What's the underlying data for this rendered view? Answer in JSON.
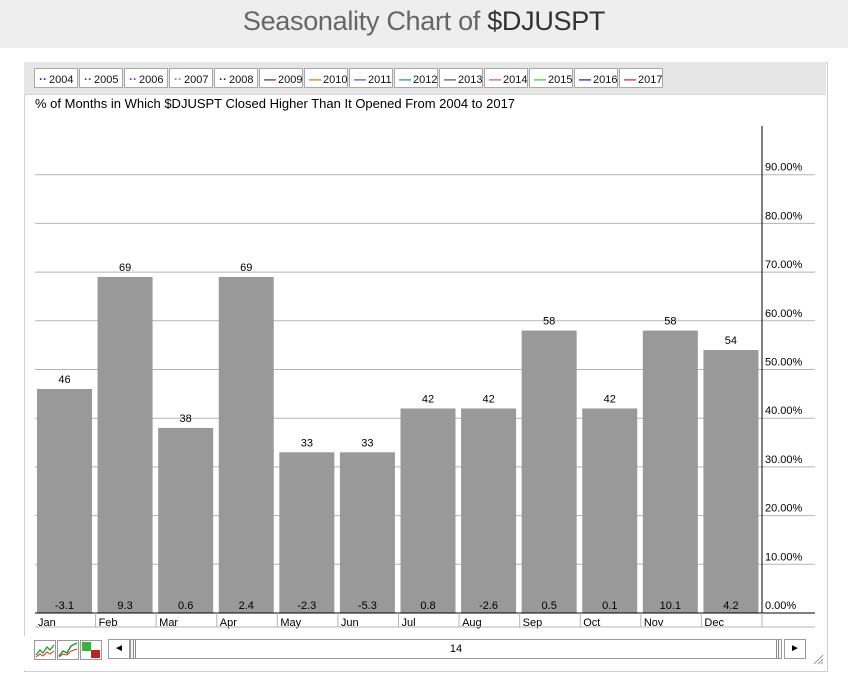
{
  "page": {
    "title_prefix": "Seasonality Chart of ",
    "title_symbol": "$DJUSPT"
  },
  "legend": [
    {
      "label": "2004",
      "color": "#1a3a9a",
      "style": "dotted"
    },
    {
      "label": "2005",
      "color": "#555555",
      "style": "dotted"
    },
    {
      "label": "2006",
      "color": "#9b2fae",
      "style": "dotted"
    },
    {
      "label": "2007",
      "color": "#3fbf3f",
      "style": "dotted"
    },
    {
      "label": "2008",
      "color": "#333366",
      "style": "dotted"
    },
    {
      "label": "2009",
      "color": "#8b1a1a",
      "style": "solid"
    },
    {
      "label": "2010",
      "color": "#e0702a",
      "style": "solid"
    },
    {
      "label": "2011",
      "color": "#7a3fb0",
      "style": "solid"
    },
    {
      "label": "2012",
      "color": "#2a8a9a",
      "style": "solid"
    },
    {
      "label": "2013",
      "color": "#555555",
      "style": "solid"
    },
    {
      "label": "2014",
      "color": "#d23fd2",
      "style": "solid"
    },
    {
      "label": "2015",
      "color": "#3fcf3f",
      "style": "solid"
    },
    {
      "label": "2016",
      "color": "#1a1a9a",
      "style": "solid"
    },
    {
      "label": "2017",
      "color": "#d22020",
      "style": "solid"
    }
  ],
  "scrollbar": {
    "value": "14",
    "left_arrow": "◄",
    "right_arrow": "►"
  },
  "toolbar": {
    "icons": [
      "line-chart-icon",
      "area-chart-icon",
      "bar-chart-icon"
    ]
  },
  "chart_data": {
    "type": "bar",
    "title": "% of Months in Which $DJUSPT Closed Higher Than It Opened From 2004 to 2017",
    "categories": [
      "Jan",
      "Feb",
      "Mar",
      "Apr",
      "May",
      "Jun",
      "Jul",
      "Aug",
      "Sep",
      "Oct",
      "Nov",
      "Dec"
    ],
    "values": [
      46,
      69,
      38,
      69,
      33,
      33,
      42,
      42,
      58,
      42,
      58,
      54
    ],
    "value_labels": [
      "46",
      "69",
      "38",
      "69",
      "33",
      "33",
      "42",
      "42",
      "58",
      "42",
      "58",
      "54"
    ],
    "avg_change_labels": [
      "-3.1",
      "9.3",
      "0.6",
      "2.4",
      "-2.3",
      "-5.3",
      "0.8",
      "-2.6",
      "0.5",
      "0.1",
      "10.1",
      "4.2"
    ],
    "ylim": [
      0,
      100
    ],
    "yticks": [
      "0.00%",
      "10.00%",
      "20.00%",
      "30.00%",
      "40.00%",
      "50.00%",
      "60.00%",
      "70.00%",
      "80.00%",
      "90.00%"
    ],
    "ytick_values": [
      0,
      10,
      20,
      30,
      40,
      50,
      60,
      70,
      80,
      90
    ],
    "y_axis_side": "right",
    "grid": true,
    "bar_color": "#999999"
  }
}
